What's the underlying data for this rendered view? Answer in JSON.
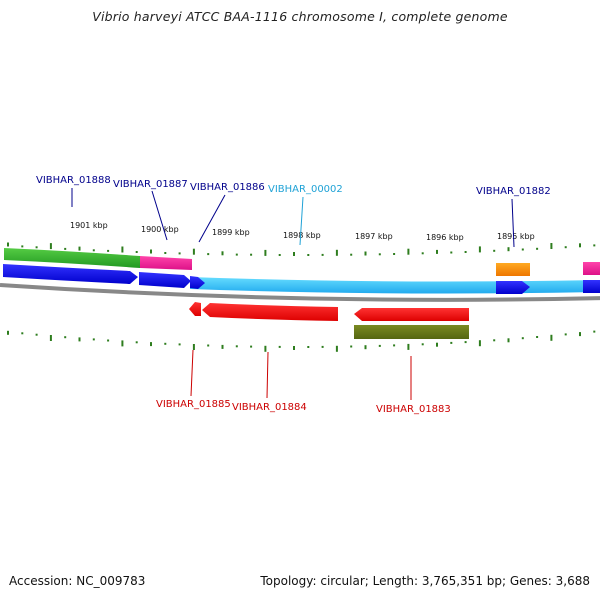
{
  "title": "Vibrio harveyi ATCC BAA-1116 chromosome I, complete genome",
  "footer": {
    "accession": "Accession: NC_009783",
    "summary": "Topology: circular; Length: 3,765,351 bp; Genes: 3,688"
  },
  "colors": {
    "background": "#ffffff",
    "tick": "#2e7d1e",
    "forward_label": "#00008b",
    "pseudo_label": "#1fa2d6",
    "reverse_label": "#cc0000",
    "backbone": "#888888"
  },
  "ticks": [
    {
      "label": "1901 kbp"
    },
    {
      "label": "1900 kbp"
    },
    {
      "label": "1899 kbp"
    },
    {
      "label": "1898 kbp"
    },
    {
      "label": "1897 kbp"
    },
    {
      "label": "1896 kbp"
    },
    {
      "label": "1895 kbp"
    }
  ],
  "gene_labels": {
    "VIBHAR_01888": "VIBHAR_01888",
    "VIBHAR_01887": "VIBHAR_01887",
    "VIBHAR_01886": "VIBHAR_01886",
    "VIBHAR_00002": "VIBHAR_00002",
    "VIBHAR_01882": "VIBHAR_01882",
    "VIBHAR_01885": "VIBHAR_01885",
    "VIBHAR_01884": "VIBHAR_01884",
    "VIBHAR_01883": "VIBHAR_01883"
  },
  "tracks": {
    "forward_cds_color": "#0000ee",
    "reverse_cds_color": "#ee0000",
    "rna_color": "#33ccff",
    "feature_colors": [
      "#33bb33",
      "#ee2299",
      "#ff8800",
      "#667711"
    ]
  }
}
